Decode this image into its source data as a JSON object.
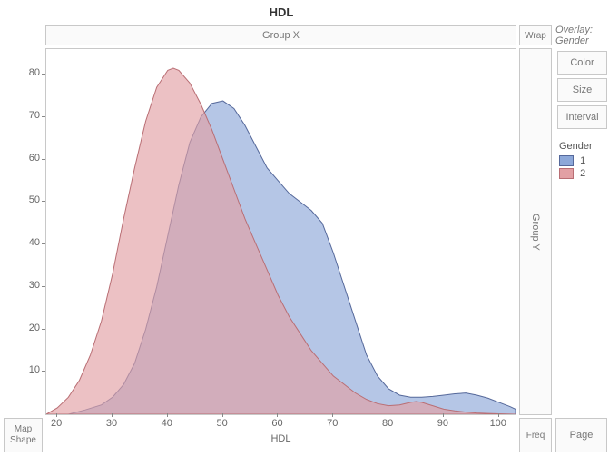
{
  "title": "HDL",
  "top_bar": {
    "group_x": "Group X",
    "wrap": "Wrap"
  },
  "right_bar": {
    "overlay": "Overlay: Gender",
    "color": "Color",
    "size": "Size",
    "interval": "Interval",
    "group_y": "Group Y",
    "page": "Page"
  },
  "bottom_bar": {
    "map_shape_line1": "Map",
    "map_shape_line2": "Shape",
    "freq": "Freq"
  },
  "legend": {
    "title": "Gender",
    "items": [
      {
        "label": "1",
        "fill": "#8da8d9",
        "stroke": "#55689a"
      },
      {
        "label": "2",
        "fill": "#e2a0a4",
        "stroke": "#b96e74"
      }
    ]
  },
  "chart": {
    "type": "density",
    "xlabel": "HDL",
    "xlim": [
      18,
      103
    ],
    "xtick_start": 20,
    "xtick_step": 10,
    "xtick_end": 100,
    "ylim": [
      0,
      86
    ],
    "ytick_start": 10,
    "ytick_step": 10,
    "ytick_end": 80,
    "background": "#ffffff",
    "fill_opacity": 0.65,
    "series": [
      {
        "name": "1",
        "fill": "#8da8d9",
        "stroke": "#55689a",
        "points": [
          [
            22,
            0
          ],
          [
            25,
            1
          ],
          [
            28,
            2.2
          ],
          [
            30,
            4
          ],
          [
            32,
            7
          ],
          [
            34,
            12
          ],
          [
            36,
            20
          ],
          [
            38,
            30
          ],
          [
            40,
            42
          ],
          [
            42,
            54
          ],
          [
            44,
            64
          ],
          [
            46,
            70
          ],
          [
            48,
            73.2
          ],
          [
            50,
            73.8
          ],
          [
            52,
            72
          ],
          [
            54,
            68
          ],
          [
            56,
            63
          ],
          [
            58,
            58
          ],
          [
            60,
            55
          ],
          [
            62,
            52
          ],
          [
            64,
            50
          ],
          [
            66,
            48
          ],
          [
            68,
            45
          ],
          [
            70,
            38
          ],
          [
            72,
            30
          ],
          [
            74,
            22
          ],
          [
            76,
            14
          ],
          [
            78,
            9
          ],
          [
            80,
            6
          ],
          [
            82,
            4.5
          ],
          [
            84,
            4
          ],
          [
            86,
            4
          ],
          [
            88,
            4.2
          ],
          [
            90,
            4.5
          ],
          [
            92,
            4.8
          ],
          [
            94,
            5
          ],
          [
            96,
            4.5
          ],
          [
            98,
            3.8
          ],
          [
            100,
            2.8
          ],
          [
            102,
            1.8
          ],
          [
            103,
            1.2
          ]
        ]
      },
      {
        "name": "2",
        "fill": "#e2a0a4",
        "stroke": "#b96e74",
        "points": [
          [
            18,
            0
          ],
          [
            20,
            1.5
          ],
          [
            22,
            4
          ],
          [
            24,
            8
          ],
          [
            26,
            14
          ],
          [
            28,
            22
          ],
          [
            30,
            33
          ],
          [
            32,
            46
          ],
          [
            34,
            58
          ],
          [
            36,
            69
          ],
          [
            38,
            77
          ],
          [
            40,
            81
          ],
          [
            41,
            81.5
          ],
          [
            42,
            81
          ],
          [
            44,
            78
          ],
          [
            46,
            73
          ],
          [
            48,
            67
          ],
          [
            50,
            60
          ],
          [
            52,
            53
          ],
          [
            54,
            46
          ],
          [
            56,
            40
          ],
          [
            58,
            34
          ],
          [
            60,
            28
          ],
          [
            62,
            23
          ],
          [
            64,
            19
          ],
          [
            66,
            15
          ],
          [
            68,
            12
          ],
          [
            70,
            9
          ],
          [
            72,
            7
          ],
          [
            74,
            5
          ],
          [
            76,
            3.5
          ],
          [
            78,
            2.5
          ],
          [
            80,
            2
          ],
          [
            82,
            2.2
          ],
          [
            84,
            2.8
          ],
          [
            85,
            3
          ],
          [
            86,
            2.8
          ],
          [
            88,
            2
          ],
          [
            90,
            1.2
          ],
          [
            92,
            0.8
          ],
          [
            94,
            0.5
          ],
          [
            96,
            0.3
          ],
          [
            98,
            0.2
          ],
          [
            100,
            0.1
          ],
          [
            103,
            0
          ]
        ]
      }
    ]
  }
}
